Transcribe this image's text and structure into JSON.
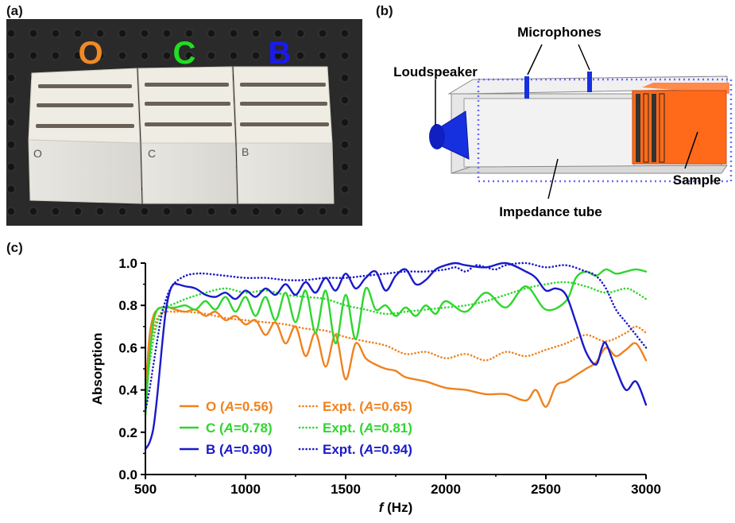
{
  "panels": {
    "a": "(a)",
    "b": "(b)",
    "c": "(c)"
  },
  "photo": {
    "letters": [
      {
        "text": "O",
        "color": "#f08a24"
      },
      {
        "text": "C",
        "color": "#22dd22"
      },
      {
        "text": "B",
        "color": "#1a1aee"
      }
    ],
    "marks": [
      "O",
      "C",
      "B"
    ]
  },
  "diagram": {
    "microphones": "Microphones",
    "loudspeaker": "Loudspeaker",
    "sample": "Sample",
    "tube": "Impedance tube"
  },
  "colors": {
    "O": "#f0821e",
    "C": "#2fd62f",
    "B": "#1a1acc",
    "speaker": "#1630e0",
    "sample": "#ff6a1a"
  },
  "chart_data": {
    "type": "line",
    "xlabel": "f (Hz)",
    "ylabel": "Absorption",
    "xlim": [
      500,
      3000
    ],
    "ylim": [
      0.0,
      1.0
    ],
    "xticks": [
      500,
      1000,
      1500,
      2000,
      2500,
      3000
    ],
    "yticks": [
      0.0,
      0.2,
      0.4,
      0.6,
      0.8,
      1.0
    ],
    "grid": false,
    "legend_position": "bottom-left",
    "legend": [
      {
        "sim": "O (A=0.56)",
        "expt": "Expt. (A=0.65)",
        "color": "#f0821e"
      },
      {
        "sim": "C (A=0.78)",
        "expt": "Expt. (A=0.81)",
        "color": "#2fd62f"
      },
      {
        "sim": "B (A=0.90)",
        "expt": "Expt. (A=0.94)",
        "color": "#1a1acc"
      }
    ],
    "series": [
      {
        "name": "O",
        "style": "solid",
        "color": "#f0821e",
        "x": [
          500,
          520,
          540,
          560,
          580,
          600,
          620,
          650,
          700,
          750,
          800,
          850,
          900,
          950,
          1000,
          1050,
          1100,
          1150,
          1200,
          1250,
          1300,
          1350,
          1400,
          1450,
          1500,
          1550,
          1600,
          1650,
          1700,
          1750,
          1800,
          1900,
          2000,
          2100,
          2200,
          2300,
          2400,
          2450,
          2500,
          2550,
          2600,
          2650,
          2700,
          2750,
          2800,
          2850,
          2900,
          2950,
          3000
        ],
        "y": [
          0.38,
          0.65,
          0.75,
          0.78,
          0.79,
          0.79,
          0.79,
          0.78,
          0.77,
          0.78,
          0.75,
          0.77,
          0.73,
          0.75,
          0.71,
          0.73,
          0.66,
          0.72,
          0.62,
          0.7,
          0.56,
          0.67,
          0.51,
          0.66,
          0.45,
          0.62,
          0.55,
          0.52,
          0.5,
          0.49,
          0.46,
          0.44,
          0.41,
          0.4,
          0.38,
          0.38,
          0.35,
          0.4,
          0.32,
          0.42,
          0.44,
          0.47,
          0.5,
          0.53,
          0.6,
          0.56,
          0.59,
          0.62,
          0.54
        ]
      },
      {
        "name": "O Expt.",
        "style": "dotted",
        "color": "#f0821e",
        "x": [
          500,
          520,
          540,
          560,
          580,
          600,
          650,
          700,
          800,
          900,
          1000,
          1100,
          1200,
          1300,
          1400,
          1500,
          1600,
          1700,
          1800,
          1900,
          2000,
          2100,
          2200,
          2300,
          2400,
          2500,
          2600,
          2700,
          2800,
          2900,
          2950,
          3000
        ],
        "y": [
          0.45,
          0.58,
          0.68,
          0.74,
          0.76,
          0.77,
          0.77,
          0.77,
          0.76,
          0.74,
          0.73,
          0.72,
          0.71,
          0.69,
          0.68,
          0.65,
          0.63,
          0.61,
          0.57,
          0.58,
          0.55,
          0.57,
          0.54,
          0.58,
          0.56,
          0.59,
          0.62,
          0.66,
          0.63,
          0.67,
          0.7,
          0.67
        ]
      },
      {
        "name": "C",
        "style": "solid",
        "color": "#2fd62f",
        "x": [
          500,
          520,
          540,
          560,
          580,
          600,
          650,
          700,
          750,
          800,
          850,
          900,
          950,
          1000,
          1050,
          1100,
          1150,
          1200,
          1250,
          1300,
          1350,
          1400,
          1450,
          1500,
          1550,
          1600,
          1650,
          1700,
          1750,
          1800,
          1850,
          1900,
          1950,
          2000,
          2100,
          2200,
          2300,
          2400,
          2500,
          2600,
          2650,
          2700,
          2750,
          2800,
          2850,
          2900,
          2950,
          3000
        ],
        "y": [
          0.28,
          0.55,
          0.72,
          0.78,
          0.79,
          0.79,
          0.79,
          0.8,
          0.78,
          0.82,
          0.78,
          0.84,
          0.77,
          0.84,
          0.75,
          0.84,
          0.73,
          0.86,
          0.72,
          0.87,
          0.67,
          0.87,
          0.62,
          0.85,
          0.64,
          0.88,
          0.78,
          0.8,
          0.75,
          0.79,
          0.75,
          0.8,
          0.76,
          0.82,
          0.77,
          0.86,
          0.79,
          0.89,
          0.78,
          0.82,
          0.93,
          0.96,
          0.94,
          0.97,
          0.95,
          0.96,
          0.97,
          0.96
        ]
      },
      {
        "name": "C Expt.",
        "style": "dotted",
        "color": "#2fd62f",
        "x": [
          500,
          520,
          540,
          560,
          580,
          600,
          650,
          700,
          800,
          900,
          1000,
          1100,
          1200,
          1300,
          1400,
          1500,
          1600,
          1700,
          1800,
          1900,
          2000,
          2100,
          2200,
          2300,
          2400,
          2500,
          2600,
          2700,
          2800,
          2900,
          2950,
          3000
        ],
        "y": [
          0.4,
          0.52,
          0.64,
          0.72,
          0.77,
          0.79,
          0.81,
          0.83,
          0.86,
          0.88,
          0.86,
          0.87,
          0.85,
          0.84,
          0.83,
          0.8,
          0.78,
          0.76,
          0.77,
          0.78,
          0.79,
          0.8,
          0.82,
          0.85,
          0.88,
          0.9,
          0.91,
          0.89,
          0.86,
          0.88,
          0.86,
          0.83
        ]
      },
      {
        "name": "B",
        "style": "solid",
        "color": "#1a1acc",
        "x": [
          500,
          520,
          540,
          560,
          580,
          600,
          620,
          640,
          660,
          700,
          750,
          800,
          850,
          900,
          950,
          1000,
          1050,
          1100,
          1150,
          1200,
          1250,
          1300,
          1350,
          1400,
          1450,
          1500,
          1550,
          1600,
          1650,
          1700,
          1750,
          1800,
          1850,
          1900,
          1950,
          2000,
          2050,
          2100,
          2200,
          2300,
          2400,
          2450,
          2500,
          2550,
          2600,
          2650,
          2700,
          2750,
          2780,
          2800,
          2850,
          2900,
          2950,
          3000
        ],
        "y": [
          0.12,
          0.15,
          0.22,
          0.38,
          0.58,
          0.76,
          0.86,
          0.9,
          0.9,
          0.89,
          0.88,
          0.85,
          0.84,
          0.86,
          0.83,
          0.87,
          0.84,
          0.88,
          0.85,
          0.9,
          0.85,
          0.91,
          0.86,
          0.93,
          0.87,
          0.95,
          0.88,
          0.93,
          0.96,
          0.87,
          0.94,
          0.97,
          0.9,
          0.92,
          0.97,
          0.99,
          1.0,
          0.99,
          0.98,
          1.0,
          0.96,
          0.93,
          0.87,
          0.88,
          0.85,
          0.72,
          0.58,
          0.52,
          0.6,
          0.62,
          0.5,
          0.4,
          0.44,
          0.33
        ]
      },
      {
        "name": "B Expt.",
        "style": "dotted",
        "color": "#1a1acc",
        "x": [
          500,
          520,
          540,
          560,
          580,
          600,
          620,
          650,
          700,
          750,
          800,
          900,
          1000,
          1100,
          1200,
          1300,
          1400,
          1500,
          1600,
          1700,
          1800,
          1900,
          2000,
          2050,
          2100,
          2150,
          2200,
          2250,
          2300,
          2400,
          2500,
          2600,
          2700,
          2750,
          2800,
          2850,
          2900,
          2950,
          3000
        ],
        "y": [
          0.3,
          0.4,
          0.52,
          0.64,
          0.75,
          0.82,
          0.87,
          0.91,
          0.94,
          0.95,
          0.95,
          0.94,
          0.93,
          0.93,
          0.92,
          0.92,
          0.93,
          0.93,
          0.94,
          0.95,
          0.96,
          0.96,
          0.97,
          0.98,
          0.96,
          0.99,
          0.98,
          0.97,
          0.99,
          1.0,
          0.98,
          0.99,
          0.96,
          0.94,
          0.88,
          0.78,
          0.72,
          0.66,
          0.6
        ]
      }
    ]
  }
}
